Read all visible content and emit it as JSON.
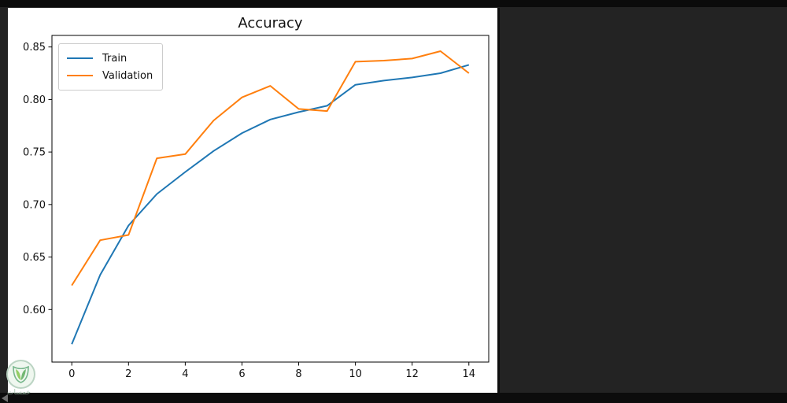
{
  "window": {
    "background_color": "#232323",
    "figure_background": "#ffffff"
  },
  "chart_data": {
    "type": "line",
    "title": "Accuracy",
    "x": [
      0,
      1,
      2,
      3,
      4,
      5,
      6,
      7,
      8,
      9,
      10,
      11,
      12,
      13,
      14
    ],
    "series": [
      {
        "name": "Train",
        "color": "#1f77b4",
        "values": [
          0.567,
          0.633,
          0.68,
          0.71,
          0.731,
          0.751,
          0.768,
          0.781,
          0.788,
          0.794,
          0.814,
          0.818,
          0.821,
          0.825,
          0.833
        ]
      },
      {
        "name": "Validation",
        "color": "#ff7f0e",
        "values": [
          0.623,
          0.666,
          0.671,
          0.744,
          0.748,
          0.78,
          0.802,
          0.813,
          0.791,
          0.789,
          0.836,
          0.837,
          0.839,
          0.846,
          0.825
        ]
      }
    ],
    "xlim": [
      -0.7,
      14.7
    ],
    "ylim": [
      0.55,
      0.861
    ],
    "x_ticks": [
      0,
      2,
      4,
      6,
      8,
      10,
      12,
      14
    ],
    "y_ticks": [
      0.6,
      0.65,
      0.7,
      0.75,
      0.8,
      0.85
    ],
    "grid": false,
    "legend_position": "upper left",
    "xlabel": "",
    "ylabel": ""
  },
  "legend": {
    "items": [
      {
        "label": "Train",
        "color": "#1f77b4"
      },
      {
        "label": "Validation",
        "color": "#ff7f0e"
      }
    ]
  },
  "watermark": {
    "text": "خمسات"
  }
}
